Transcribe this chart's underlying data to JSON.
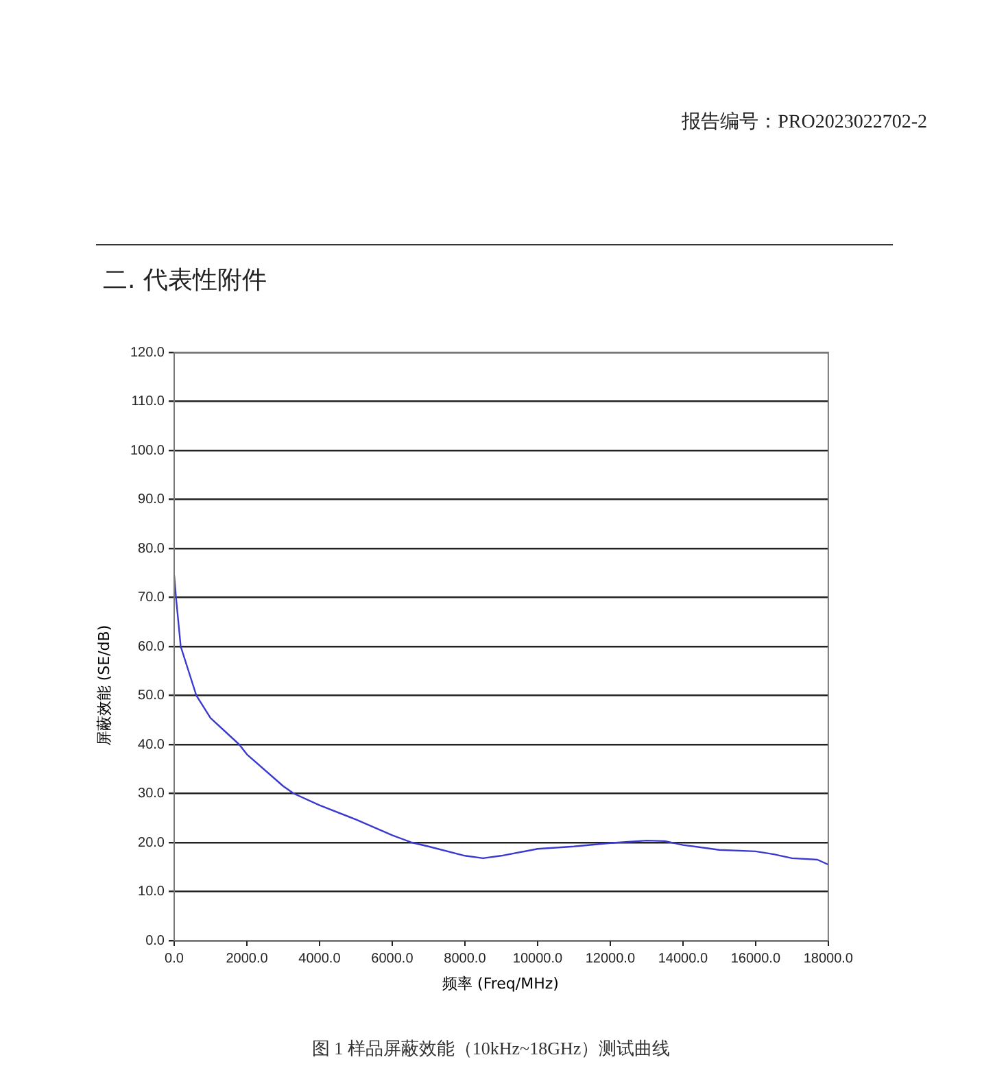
{
  "chart_data": {
    "type": "line",
    "title": "图 1 样品屏蔽效能（10kHz~18GHz）测试曲线",
    "xlabel": "频率 (Freq/MHz)",
    "ylabel": "屏蔽效能 (SE/dB)",
    "annotations": [
      "报告编号：PRO2023022702-2",
      "二. 代表性附件"
    ],
    "x": [
      0.01,
      50,
      180,
      610,
      1000,
      1790,
      2000,
      3000,
      3290,
      4000,
      5000,
      6000,
      6540,
      7000,
      8000,
      8500,
      9000,
      10000,
      11000,
      12000,
      13000,
      13500,
      14000,
      15000,
      16000,
      16500,
      17000,
      17700,
      18000
    ],
    "series": [
      {
        "color": "#3a3ad0",
        "values": [
          74.5,
          70,
          60,
          50,
          45.4,
          40,
          38,
          31.5,
          30,
          27.6,
          24.7,
          21.5,
          20,
          19.2,
          17.3,
          16.8,
          17.3,
          18.7,
          19.2,
          19.9,
          20.4,
          20.3,
          19.5,
          18.5,
          18.2,
          17.6,
          16.8,
          16.5,
          15.5
        ]
      }
    ],
    "xlim": [
      0,
      18000
    ],
    "ylim": [
      0,
      120
    ],
    "xticks": [
      {
        "value": 0,
        "label": "0.0"
      },
      {
        "value": 2000,
        "label": "2000.0"
      },
      {
        "value": 4000,
        "label": "4000.0"
      },
      {
        "value": 6000,
        "label": "6000.0"
      },
      {
        "value": 8000,
        "label": "8000.0"
      },
      {
        "value": 10000,
        "label": "10000.0"
      },
      {
        "value": 12000,
        "label": "12000.0"
      },
      {
        "value": 14000,
        "label": "14000.0"
      },
      {
        "value": 16000,
        "label": "16000.0"
      },
      {
        "value": 18000,
        "label": "18000.0"
      }
    ],
    "yticks": [
      {
        "value": 0,
        "label": "0.0"
      },
      {
        "value": 10,
        "label": "10.0"
      },
      {
        "value": 20,
        "label": "20.0"
      },
      {
        "value": 30,
        "label": "30.0"
      },
      {
        "value": 40,
        "label": "40.0"
      },
      {
        "value": 50,
        "label": "50.0"
      },
      {
        "value": 60,
        "label": "60.0"
      },
      {
        "value": 70,
        "label": "70.0"
      },
      {
        "value": 80,
        "label": "80.0"
      },
      {
        "value": 90,
        "label": "90.0"
      },
      {
        "value": 100,
        "label": "100.0"
      },
      {
        "value": 110,
        "label": "110.0"
      },
      {
        "value": 120,
        "label": "120.0"
      }
    ],
    "grid": "y",
    "legend": false,
    "marker": "none",
    "line_style": "solid"
  }
}
